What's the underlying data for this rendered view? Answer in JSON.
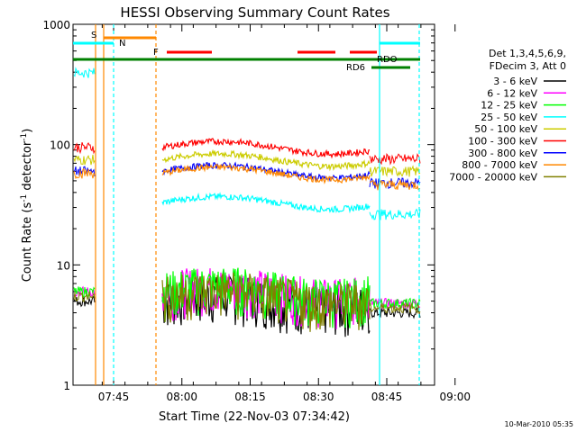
{
  "chart_data": {
    "type": "line",
    "title": "HESSI Observing Summary Count Rates",
    "ylabel_parts": {
      "main": "Count Rate (s",
      "sup1": "-1",
      "mid": " detector",
      "sup2": "-1",
      "end": ")"
    },
    "xlabel": "Start Time (22-Nov-03 07:34:42)",
    "y_scale": "log",
    "ylim": [
      1,
      1000
    ],
    "xlim_minutes": [
      -5,
      75
    ],
    "y_ticks": [
      {
        "value": 1,
        "label": "1"
      },
      {
        "value": 10,
        "label": "10"
      },
      {
        "value": 100,
        "label": "100"
      },
      {
        "value": 1000,
        "label": "1000"
      }
    ],
    "x_ticks": [
      {
        "minute": 5,
        "label": "07:45"
      },
      {
        "minute": 20,
        "label": "08:00"
      },
      {
        "minute": 35,
        "label": "08:15"
      },
      {
        "minute": 50,
        "label": "08:30"
      },
      {
        "minute": 65,
        "label": "08:45"
      },
      {
        "minute": 80,
        "label": "09:00"
      }
    ],
    "legend_header": [
      "Det 1,3,4,5,6,9,",
      "FDecim 3, Att 0"
    ],
    "legend_position": "right",
    "series": [
      {
        "name": "3 - 6 keV",
        "color": "#000000"
      },
      {
        "name": "6 - 12 keV",
        "color": "#ff00ff"
      },
      {
        "name": "12 - 25 keV",
        "color": "#00ff00"
      },
      {
        "name": "25 - 50 keV",
        "color": "#00ffff"
      },
      {
        "name": "50 - 100 keV",
        "color": "#cccc00"
      },
      {
        "name": "100 - 300 keV",
        "color": "#ff0000"
      },
      {
        "name": "300 - 800 keV",
        "color": "#0000ff"
      },
      {
        "name": "800 - 7000 keV",
        "color": "#ff8800"
      },
      {
        "name": "7000 - 20000 keV",
        "color": "#808000"
      }
    ],
    "flag_labels": [
      {
        "label": "S",
        "color": "#ff8800"
      },
      {
        "label": "N",
        "color": "#00ffff"
      },
      {
        "label": "F",
        "color": "#ff0000"
      },
      {
        "label": "RDO",
        "color": "#008000"
      },
      {
        "label": "RD6",
        "color": "#008000"
      }
    ],
    "footer_date": "10-Mar-2010 05:35"
  }
}
